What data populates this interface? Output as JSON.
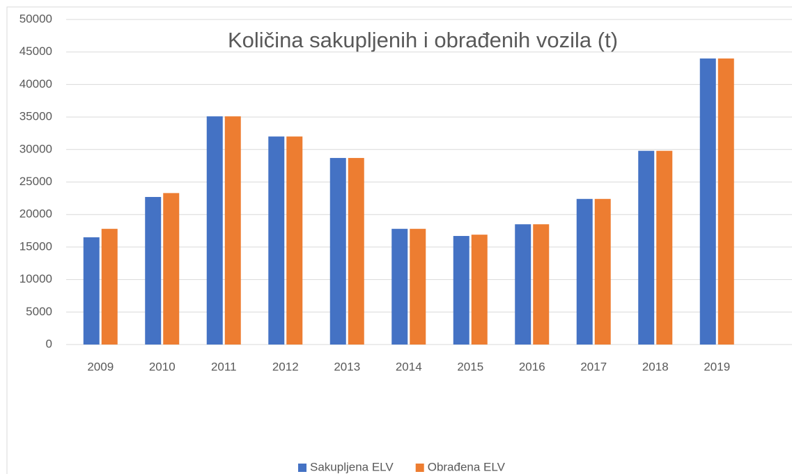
{
  "chart_data": {
    "type": "bar",
    "title": "Količina sakupljenih i obrađenih vozila (t)",
    "categories": [
      "2009",
      "2010",
      "2011",
      "2012",
      "2013",
      "2014",
      "2015",
      "2016",
      "2017",
      "2018",
      "2019"
    ],
    "series": [
      {
        "name": "Sakupljena ELV",
        "color": "#4472c4",
        "values": [
          16500,
          22700,
          35100,
          32000,
          28700,
          17800,
          16700,
          18500,
          22400,
          29800,
          44000
        ]
      },
      {
        "name": "Obrađena ELV",
        "color": "#ed7d31",
        "values": [
          17800,
          23300,
          35100,
          32000,
          28700,
          17800,
          16900,
          18500,
          22400,
          29800,
          44000
        ]
      }
    ],
    "ylim": [
      0,
      50000
    ],
    "yticks": [
      0,
      5000,
      10000,
      15000,
      20000,
      25000,
      30000,
      35000,
      40000,
      45000,
      50000
    ],
    "grid": true,
    "legend": "bottom"
  }
}
